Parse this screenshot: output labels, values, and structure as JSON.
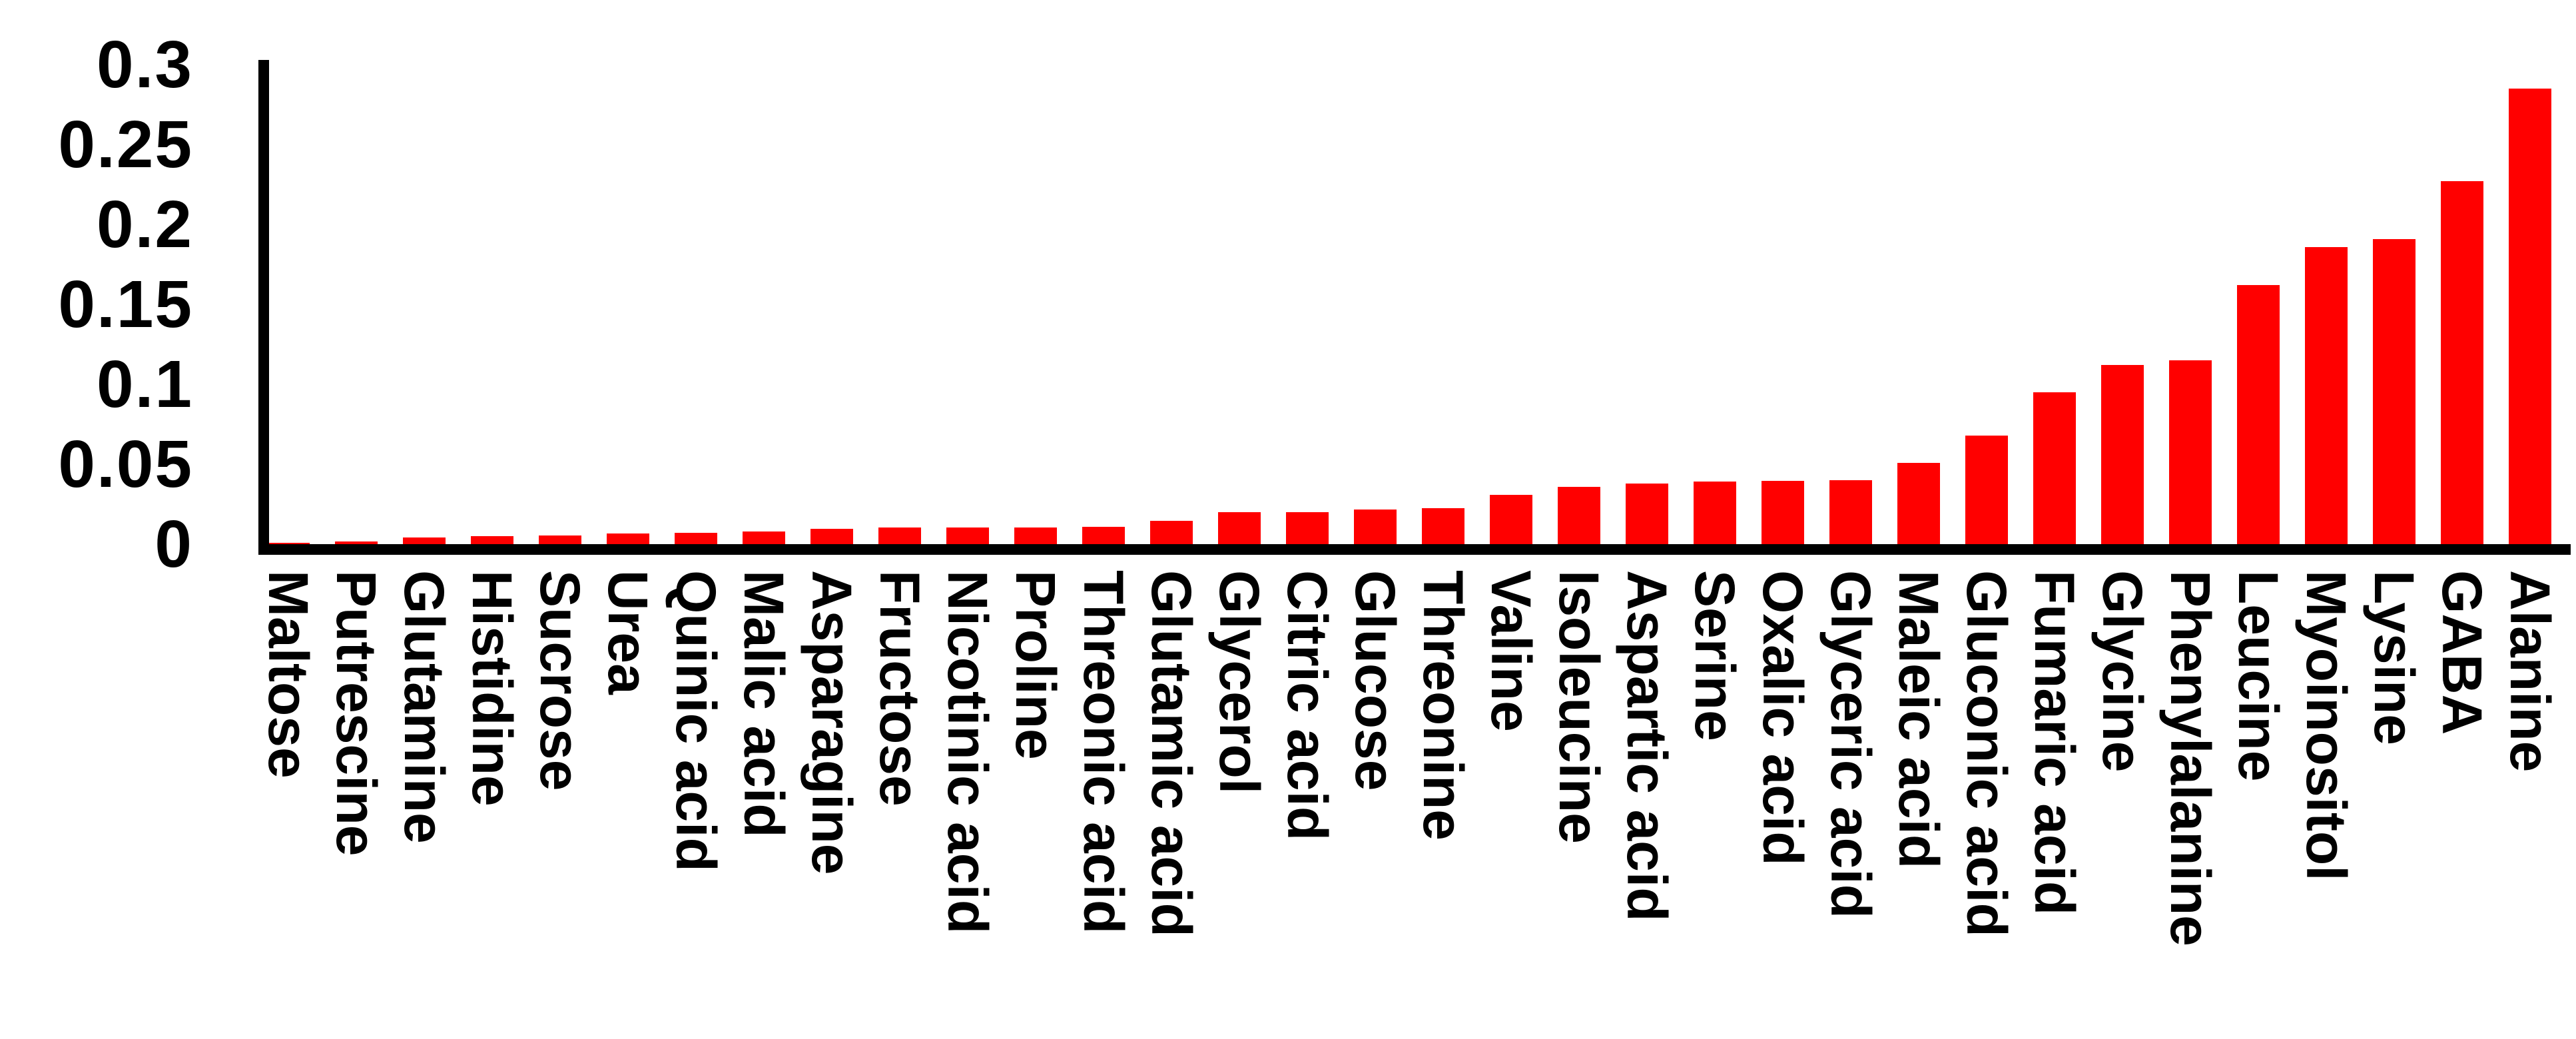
{
  "chart_data": {
    "type": "bar",
    "title": "",
    "xlabel": "",
    "ylabel": "",
    "ylim": [
      0,
      0.3
    ],
    "grid": false,
    "legend_position": "none",
    "x_tick_rotation_degrees": 90,
    "bar_color": "#FF0000",
    "axis_color": "#000000",
    "background_color": "#FFFFFF",
    "ytick_labels": [
      "0",
      "0.05",
      "0.1",
      "0.15",
      "0.2",
      "0.25",
      "0.3"
    ],
    "yticks": [
      0,
      0.05,
      0.1,
      0.15,
      0.2,
      0.25,
      0.3
    ],
    "categories": [
      "Maltose",
      "Putrescine",
      "Glutamine",
      "Histidine",
      "Sucrose",
      "Urea",
      "Quinic acid",
      "Malic acid",
      "Asparagine",
      "Fructose",
      "Nicotinic acid",
      "Proline",
      "Threonic acid",
      "Glutamic acid",
      "Glycerol",
      "Citric acid",
      "Glucose",
      "Threonine",
      "Valine",
      "Isoleucine",
      "Aspartic acid",
      "Serine",
      "Oxalic acid",
      "Glyceric acid",
      "Maleic acid",
      "Gluconic acid",
      "Fumaric acid",
      "Glycine",
      "Phenylalanine",
      "Leucine",
      "Myoinositol",
      "Lysine",
      "GABA",
      "Alanine"
    ],
    "values": [
      0.001,
      0.0015,
      0.004,
      0.005,
      0.0055,
      0.0065,
      0.007,
      0.008,
      0.0095,
      0.0105,
      0.0105,
      0.0105,
      0.011,
      0.0145,
      0.02,
      0.02,
      0.0215,
      0.0225,
      0.031,
      0.036,
      0.038,
      0.039,
      0.0395,
      0.04,
      0.051,
      0.068,
      0.095,
      0.112,
      0.115,
      0.162,
      0.186,
      0.191,
      0.227,
      0.285
    ]
  }
}
